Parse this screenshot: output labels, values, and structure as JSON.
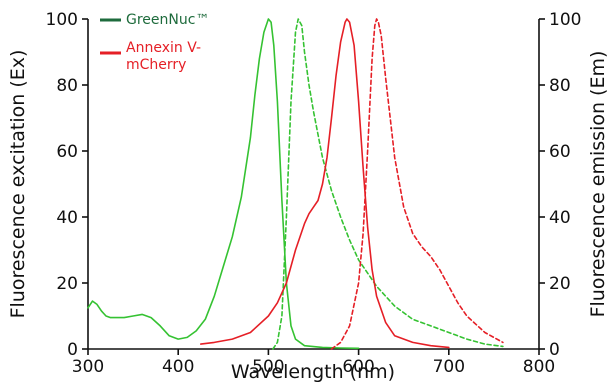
{
  "chart_data": {
    "type": "line",
    "xlabel": "Wavelength (nm)",
    "ylabel_left": "Fluorescence excitation (Ex)",
    "ylabel_right": "Fluorescence emission (Em)",
    "xlim": [
      300,
      800
    ],
    "ylim": [
      0,
      100
    ],
    "x_ticks": [
      300,
      400,
      500,
      600,
      700,
      800
    ],
    "y_ticks": [
      0,
      20,
      40,
      60,
      80,
      100
    ],
    "grid": false,
    "legend_position": "top-left",
    "legend": [
      {
        "label": "GreenNuc™",
        "color": "#1e6b3c"
      },
      {
        "label": "Annexin V-mCherry",
        "label_lines": [
          "Annexin V-",
          "mCherry"
        ],
        "color": "#e51f26"
      }
    ],
    "series": [
      {
        "name": "GreenNuc™",
        "kind": "excitation",
        "style": "solid",
        "color": "#35c232",
        "x": [
          300,
          305,
          310,
          315,
          320,
          325,
          330,
          340,
          350,
          360,
          370,
          380,
          390,
          400,
          410,
          420,
          430,
          440,
          450,
          460,
          470,
          480,
          485,
          490,
          495,
          500,
          503,
          506,
          510,
          515,
          520,
          525,
          530,
          540,
          560,
          580,
          600
        ],
        "y": [
          12.5,
          14.5,
          13.5,
          11.5,
          10,
          9.5,
          9.5,
          9.5,
          10,
          10.5,
          9.5,
          7,
          4,
          3,
          3.5,
          5.5,
          9,
          16,
          25,
          34,
          46,
          64,
          77,
          88,
          96,
          100,
          99,
          92,
          75,
          45,
          20,
          7,
          3,
          1,
          0.5,
          0.3,
          0.2
        ]
      },
      {
        "name": "GreenNuc™",
        "kind": "emission",
        "style": "dashed",
        "color": "#35c232",
        "x": [
          505,
          510,
          515,
          520,
          525,
          530,
          533,
          537,
          540,
          545,
          550,
          560,
          570,
          580,
          590,
          600,
          620,
          640,
          660,
          680,
          700,
          720,
          740,
          760
        ],
        "y": [
          0,
          2,
          10,
          40,
          75,
          96,
          100,
          98,
          90,
          80,
          72,
          58,
          48,
          40,
          33,
          27,
          19,
          13,
          9,
          7,
          5,
          3,
          1.5,
          0.8
        ]
      },
      {
        "name": "Annexin V-mCherry",
        "kind": "excitation",
        "style": "solid",
        "color": "#e51f26",
        "x": [
          425,
          440,
          460,
          480,
          500,
          510,
          520,
          530,
          540,
          545,
          550,
          555,
          560,
          565,
          570,
          575,
          580,
          585,
          587,
          590,
          595,
          600,
          605,
          610,
          615,
          620,
          630,
          640,
          660,
          680,
          700
        ],
        "y": [
          1.5,
          2,
          3,
          5,
          10,
          14,
          20,
          30,
          38,
          41,
          43,
          45,
          50,
          58,
          70,
          83,
          93,
          99,
          100,
          99,
          92,
          75,
          55,
          37,
          24,
          16,
          8,
          4,
          2,
          1,
          0.5
        ]
      },
      {
        "name": "Annexin V-mCherry",
        "kind": "emission",
        "style": "dashed",
        "color": "#e51f26",
        "x": [
          570,
          580,
          590,
          600,
          605,
          610,
          615,
          618,
          620,
          622,
          625,
          630,
          635,
          640,
          650,
          660,
          670,
          680,
          690,
          700,
          710,
          720,
          740,
          760
        ],
        "y": [
          0,
          2,
          7,
          20,
          35,
          60,
          88,
          98,
          100,
          99,
          95,
          82,
          70,
          58,
          43,
          35,
          31,
          28,
          24,
          19,
          14,
          10,
          5,
          2
        ]
      }
    ]
  }
}
